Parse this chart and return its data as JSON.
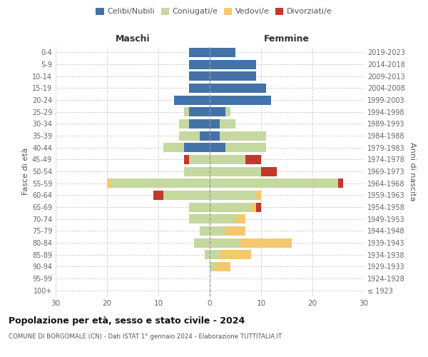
{
  "age_groups": [
    "100+",
    "95-99",
    "90-94",
    "85-89",
    "80-84",
    "75-79",
    "70-74",
    "65-69",
    "60-64",
    "55-59",
    "50-54",
    "45-49",
    "40-44",
    "35-39",
    "30-34",
    "25-29",
    "20-24",
    "15-19",
    "10-14",
    "5-9",
    "0-4"
  ],
  "birth_years": [
    "≤ 1923",
    "1924-1928",
    "1929-1933",
    "1934-1938",
    "1939-1943",
    "1944-1948",
    "1949-1953",
    "1954-1958",
    "1959-1963",
    "1964-1968",
    "1969-1973",
    "1974-1978",
    "1979-1983",
    "1984-1988",
    "1989-1993",
    "1994-1998",
    "1999-2003",
    "2004-2008",
    "2009-2013",
    "2014-2018",
    "2019-2023"
  ],
  "maschi": {
    "celibi": [
      0,
      0,
      0,
      0,
      0,
      0,
      0,
      0,
      0,
      0,
      0,
      0,
      5,
      2,
      4,
      4,
      7,
      4,
      4,
      4,
      4
    ],
    "coniugati": [
      0,
      0,
      0,
      1,
      3,
      2,
      4,
      4,
      9,
      19,
      5,
      4,
      4,
      4,
      2,
      1,
      0,
      0,
      0,
      0,
      0
    ],
    "vedovi": [
      0,
      0,
      0,
      0,
      0,
      0,
      0,
      0,
      0,
      1,
      0,
      0,
      0,
      0,
      0,
      0,
      0,
      0,
      0,
      0,
      0
    ],
    "divorziati": [
      0,
      0,
      0,
      0,
      0,
      0,
      0,
      0,
      2,
      0,
      0,
      1,
      0,
      0,
      0,
      0,
      0,
      0,
      0,
      0,
      0
    ]
  },
  "femmine": {
    "nubili": [
      0,
      0,
      0,
      0,
      0,
      0,
      0,
      0,
      0,
      0,
      0,
      0,
      3,
      2,
      2,
      3,
      12,
      11,
      9,
      9,
      5
    ],
    "coniugate": [
      0,
      0,
      1,
      2,
      6,
      3,
      5,
      8,
      9,
      25,
      10,
      7,
      8,
      9,
      3,
      1,
      0,
      0,
      0,
      0,
      0
    ],
    "vedove": [
      0,
      0,
      3,
      6,
      10,
      4,
      2,
      1,
      1,
      0,
      0,
      0,
      0,
      0,
      0,
      0,
      0,
      0,
      0,
      0,
      0
    ],
    "divorziate": [
      0,
      0,
      0,
      0,
      0,
      0,
      0,
      1,
      0,
      1,
      3,
      3,
      0,
      0,
      0,
      0,
      0,
      0,
      0,
      0,
      0
    ]
  },
  "colors": {
    "celibi_nubili": "#4472a8",
    "coniugati": "#c5d8a0",
    "vedovi": "#f5c86e",
    "divorziati": "#c0392b"
  },
  "title": "Popolazione per età, sesso e stato civile - 2024",
  "subtitle": "COMUNE DI BORGOMALE (CN) - Dati ISTAT 1° gennaio 2024 - Elaborazione TUTTITALIA.IT",
  "xlabel_left": "Maschi",
  "xlabel_right": "Femmine",
  "ylabel_left": "Fasce di età",
  "ylabel_right": "Anni di nascita",
  "xlim": 30,
  "legend_labels": [
    "Celibi/Nubili",
    "Coniugati/e",
    "Vedovi/e",
    "Divorziati/e"
  ],
  "background_color": "#ffffff"
}
